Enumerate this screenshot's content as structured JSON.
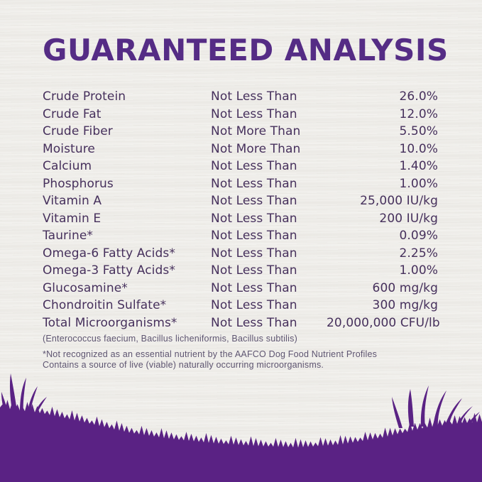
{
  "title": "GUARANTEED ANALYSIS",
  "colors": {
    "heading": "#552c85",
    "text": "#46305c",
    "footnote": "#5e5571",
    "grass": "#5a2284",
    "background": "#f4f3f0"
  },
  "analysis_table": {
    "rows": [
      {
        "nutrient": "Crude Protein",
        "comparator": "Not Less Than",
        "value": "26.0%"
      },
      {
        "nutrient": "Crude Fat",
        "comparator": "Not Less Than",
        "value": "12.0%"
      },
      {
        "nutrient": "Crude Fiber",
        "comparator": "Not More Than",
        "value": "5.50%"
      },
      {
        "nutrient": "Moisture",
        "comparator": "Not More Than",
        "value": "10.0%"
      },
      {
        "nutrient": "Calcium",
        "comparator": "Not Less Than",
        "value": "1.40%"
      },
      {
        "nutrient": "Phosphorus",
        "comparator": "Not Less Than",
        "value": "1.00%"
      },
      {
        "nutrient": "Vitamin A",
        "comparator": "Not Less Than",
        "value": "25,000 IU/kg"
      },
      {
        "nutrient": "Vitamin E",
        "comparator": "Not Less Than",
        "value": "200 IU/kg"
      },
      {
        "nutrient": "Taurine*",
        "comparator": "Not Less Than",
        "value": "0.09%"
      },
      {
        "nutrient": "Omega-6 Fatty Acids*",
        "comparator": "Not Less Than",
        "value": "2.25%"
      },
      {
        "nutrient": "Omega-3 Fatty Acids*",
        "comparator": "Not Less Than",
        "value": "1.00%"
      },
      {
        "nutrient": "Glucosamine*",
        "comparator": "Not Less Than",
        "value": "600 mg/kg"
      },
      {
        "nutrient": "Chondroitin Sulfate*",
        "comparator": "Not Less Than",
        "value": "300 mg/kg"
      },
      {
        "nutrient": "Total Microorganisms*",
        "comparator": "Not Less Than",
        "value": "20,000,000 CFU/lb"
      }
    ]
  },
  "notes": {
    "species": "(Enterococcus faecium, Bacillus licheniformis, Bacillus subtilis)",
    "footnote_1": "*Not recognized as an essential nutrient by the AAFCO Dog Food Nutrient Profiles",
    "footnote_2": "Contains a source of live (viable) naturally occurring microorganisms."
  }
}
